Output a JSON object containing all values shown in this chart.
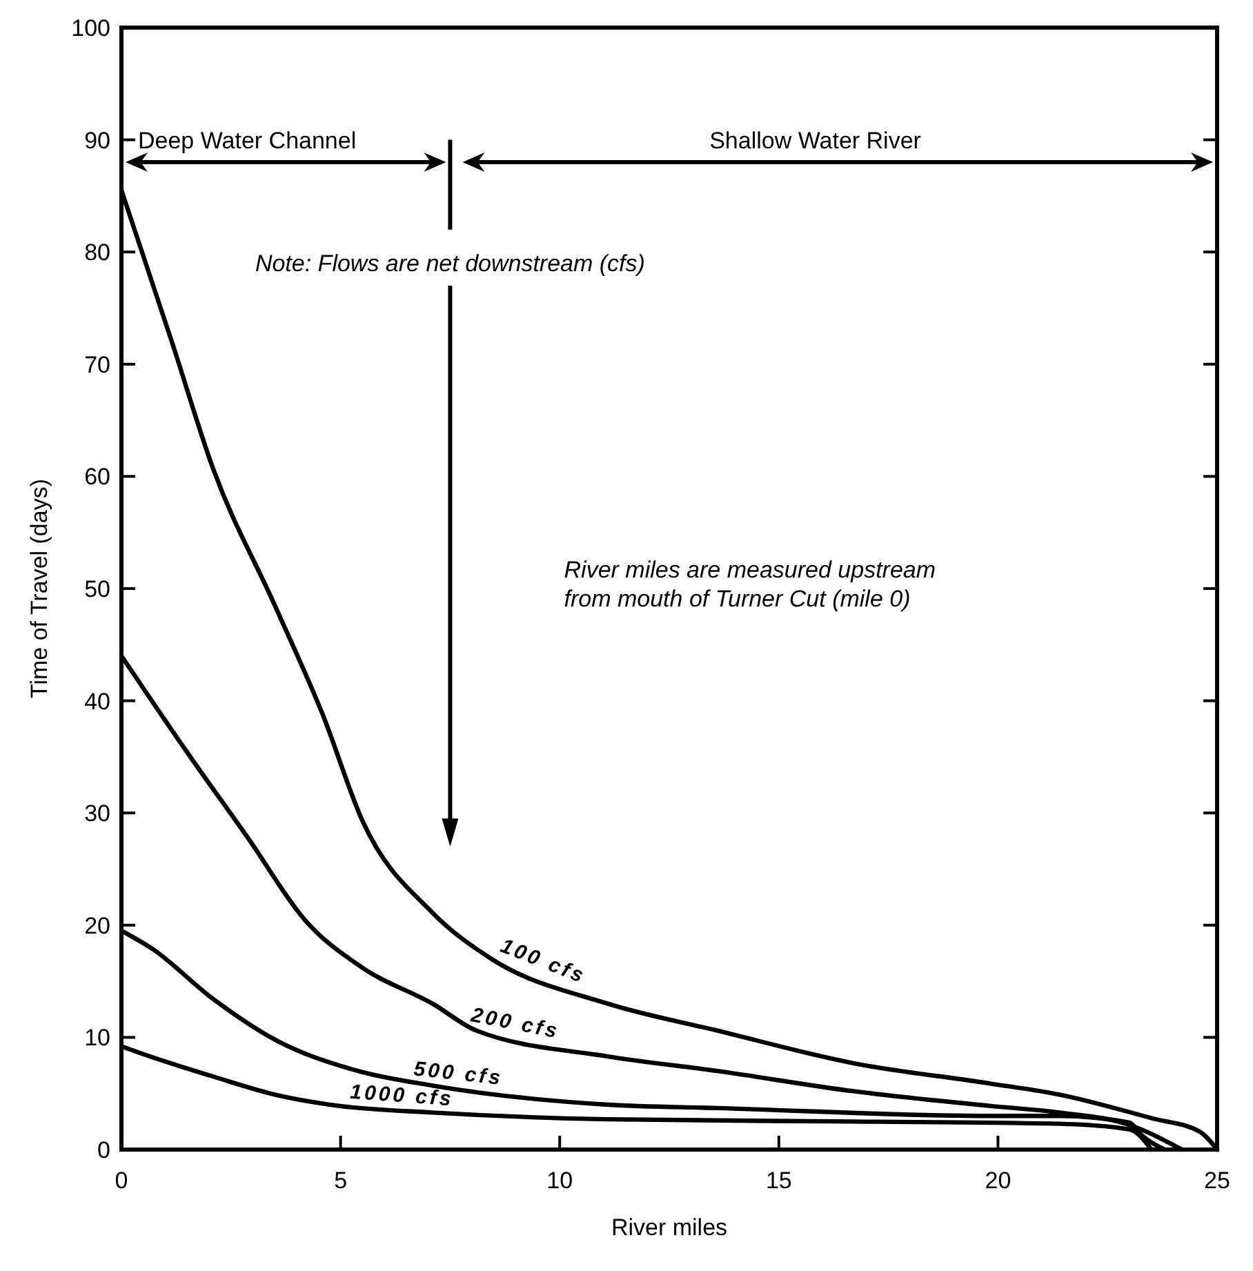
{
  "chart_data": {
    "type": "line",
    "xlabel": "River miles",
    "ylabel": "Time of Travel (days)",
    "xlim": [
      0,
      25
    ],
    "ylim": [
      0,
      100
    ],
    "xticks": [
      0,
      5,
      10,
      15,
      20,
      25
    ],
    "yticks": [
      0,
      10,
      20,
      30,
      40,
      50,
      60,
      70,
      80,
      90,
      100
    ],
    "grid": false,
    "marker": "none",
    "line_style": "solid",
    "series": [
      {
        "name": "100 cfs",
        "color": "#000000",
        "x": [
          0,
          1.15,
          2.1,
          3.5,
          4.6,
          5.5,
          7.1,
          8.4,
          11.1,
          13.6,
          16.7,
          19.8,
          21.4,
          23.5,
          24.6,
          25
        ],
        "values": [
          85.5,
          72,
          60.6,
          48.5,
          38.7,
          29.3,
          21.1,
          17.1,
          13,
          10.6,
          7.7,
          5.9,
          4.9,
          2.8,
          1.6,
          0
        ]
      },
      {
        "name": "200 cfs",
        "color": "#000000",
        "x": [
          0,
          1.5,
          2.9,
          4.2,
          5.5,
          7.1,
          8.1,
          11.1,
          13.6,
          16.7,
          19.8,
          21.4,
          23,
          24.2
        ],
        "values": [
          44,
          35.4,
          27.7,
          20.4,
          16.2,
          13,
          10.6,
          8.3,
          7,
          5.2,
          3.9,
          3.3,
          2.2,
          0
        ]
      },
      {
        "name": "500 cfs",
        "color": "#000000",
        "x": [
          0,
          0.7,
          2.1,
          3.5,
          5.4,
          7.1,
          11.1,
          13.6,
          19.8,
          21.4,
          23,
          23.3,
          23.8
        ],
        "values": [
          19.5,
          17.9,
          13.4,
          9.8,
          7,
          5.7,
          4,
          3.7,
          3,
          3,
          2.4,
          1.2,
          0
        ]
      },
      {
        "name": "1000 cfs",
        "color": "#000000",
        "x": [
          0,
          0.5,
          2.1,
          3.5,
          4.95,
          7.1,
          11.1,
          16.7,
          21.4,
          23,
          23.5
        ],
        "values": [
          9.2,
          8.5,
          6.5,
          4.9,
          3.9,
          3.3,
          2.7,
          2.5,
          2.3,
          1.8,
          0
        ]
      }
    ],
    "ref_lines": [
      {
        "axis": "x",
        "value": 7.5,
        "label": null
      }
    ],
    "annotations": [
      "Deep Water Channel",
      "Shallow Water River",
      "Note: Flows are net downstream (cfs)",
      "River miles are measured upstream\nfrom mouth of Turner Cut (mile 0)"
    ]
  }
}
